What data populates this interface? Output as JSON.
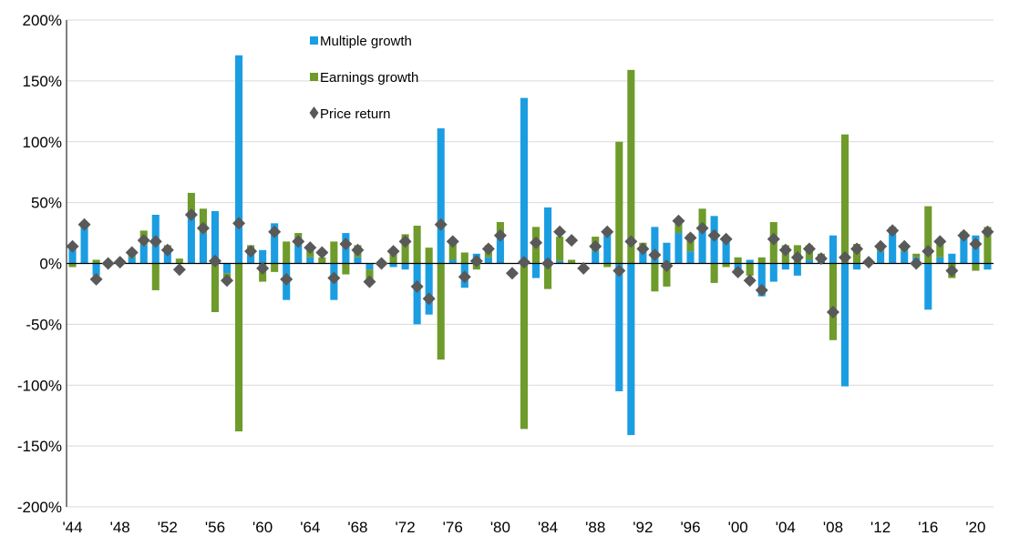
{
  "chart_data": {
    "type": "bar",
    "title": "",
    "xlabel": "",
    "ylabel": "",
    "ylim": [
      -200,
      200
    ],
    "y_ticks": [
      200,
      150,
      100,
      50,
      0,
      -50,
      -100,
      -150,
      -200
    ],
    "y_tick_labels": [
      "200%",
      "150%",
      "100%",
      "50%",
      "0%",
      "-50%",
      "-100%",
      "-150%",
      "-200%"
    ],
    "x_tick_labels": [
      "'44",
      "'48",
      "'52",
      "'56",
      "'60",
      "'64",
      "'68",
      "'72",
      "'76",
      "'80",
      "'84",
      "'88",
      "'92",
      "'96",
      "'00",
      "'04",
      "'08",
      "'12",
      "'16",
      "'20"
    ],
    "x_tick_years": [
      1944,
      1948,
      1952,
      1956,
      1960,
      1964,
      1968,
      1972,
      1976,
      1980,
      1984,
      1988,
      1992,
      1996,
      2000,
      2004,
      2008,
      2012,
      2016,
      2020
    ],
    "grid": true,
    "legend_position": "top-center",
    "colors": {
      "multiple": "#1b9de2",
      "earnings": "#6e9b2b",
      "price": "#595959"
    },
    "categories": [
      1944,
      1945,
      1946,
      1947,
      1948,
      1949,
      1950,
      1951,
      1952,
      1953,
      1954,
      1955,
      1956,
      1957,
      1958,
      1959,
      1960,
      1961,
      1962,
      1963,
      1964,
      1965,
      1966,
      1967,
      1968,
      1969,
      1970,
      1971,
      1972,
      1973,
      1974,
      1975,
      1976,
      1977,
      1978,
      1979,
      1980,
      1981,
      1982,
      1983,
      1984,
      1985,
      1986,
      1987,
      1988,
      1989,
      1990,
      1991,
      1992,
      1993,
      1994,
      1995,
      1996,
      1997,
      1998,
      1999,
      2000,
      2001,
      2002,
      2003,
      2004,
      2005,
      2006,
      2007,
      2008,
      2009,
      2010,
      2011,
      2012,
      2013,
      2014,
      2015,
      2016,
      2017,
      2018,
      2019,
      2020,
      2021
    ],
    "series": [
      {
        "name": "Multiple growth",
        "kind": "bar",
        "values": [
          15,
          30,
          -10,
          0,
          0,
          5,
          15,
          40,
          10,
          0,
          40,
          25,
          43,
          -8,
          171,
          10,
          11,
          33,
          -30,
          15,
          5,
          0,
          -30,
          25,
          5,
          -5,
          0,
          -3,
          -5,
          -50,
          -42,
          111,
          3,
          -20,
          8,
          5,
          24,
          0,
          136,
          -12,
          46,
          2,
          0,
          0,
          10,
          25,
          -105,
          -141,
          12,
          30,
          17,
          25,
          10,
          30,
          39,
          20,
          -5,
          3,
          -27,
          -15,
          -5,
          -10,
          3,
          5,
          23,
          -101,
          -5,
          0,
          10,
          25,
          10,
          5,
          -38,
          5,
          8,
          23,
          23,
          -5
        ]
      },
      {
        "name": "Earnings growth",
        "kind": "bar",
        "values": [
          -3,
          3,
          3,
          0,
          3,
          5,
          12,
          -22,
          5,
          4,
          18,
          20,
          -40,
          -5,
          -138,
          5,
          -15,
          -7,
          18,
          10,
          10,
          5,
          18,
          -9,
          10,
          -10,
          0,
          10,
          24,
          31,
          13,
          -79,
          15,
          9,
          -5,
          10,
          10,
          0,
          -136,
          30,
          -21,
          20,
          3,
          0,
          12,
          -3,
          100,
          159,
          5,
          -23,
          -19,
          12,
          14,
          15,
          -16,
          -3,
          5,
          -10,
          5,
          34,
          15,
          15,
          12,
          3,
          -63,
          106,
          16,
          0,
          5,
          5,
          5,
          3,
          47,
          15,
          -12,
          3,
          -6,
          30
        ]
      },
      {
        "name": "Price return",
        "kind": "scatter",
        "values": [
          14,
          32,
          -13,
          0,
          1,
          9,
          19,
          18,
          11,
          -5,
          40,
          29,
          2,
          -14,
          33,
          10,
          -4,
          26,
          -13,
          18,
          13,
          9,
          -12,
          16,
          11,
          -15,
          0,
          10,
          18,
          -19,
          -29,
          32,
          18,
          -11,
          2,
          12,
          23,
          -8,
          1,
          17,
          0,
          26,
          19,
          -4,
          14,
          26,
          -6,
          18,
          12,
          7,
          -2,
          35,
          21,
          29,
          23,
          20,
          -7,
          -14,
          -22,
          20,
          11,
          5,
          12,
          4,
          -40,
          5,
          12,
          1,
          14,
          27,
          14,
          0,
          10,
          18,
          -6,
          23,
          16,
          26
        ]
      }
    ]
  }
}
